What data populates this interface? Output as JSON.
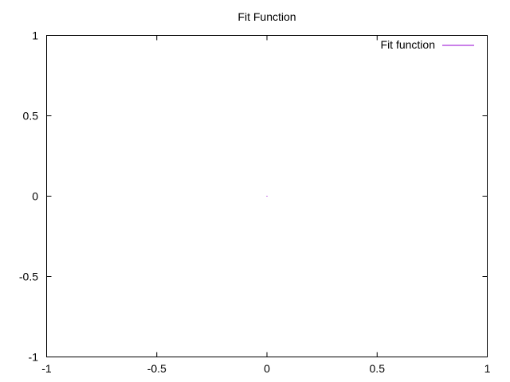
{
  "chart_data": {
    "type": "line",
    "title": "Fit Function",
    "xlabel": "",
    "ylabel": "",
    "xlim": [
      -1,
      1
    ],
    "ylim": [
      -1,
      1
    ],
    "x_ticks": [
      -1,
      -0.5,
      0,
      0.5,
      1
    ],
    "x_tick_labels": [
      "-1",
      "-0.5",
      "0",
      "0.5",
      "1"
    ],
    "y_ticks": [
      -1,
      -0.5,
      0,
      0.5,
      1
    ],
    "y_tick_labels": [
      "-1",
      "-0.5",
      "0",
      "0.5",
      "1"
    ],
    "grid": false,
    "legend_position": "top-right",
    "series": [
      {
        "name": "Fit function",
        "color": "#9400d3",
        "points": [
          {
            "x": 0,
            "y": 0
          }
        ]
      }
    ]
  }
}
